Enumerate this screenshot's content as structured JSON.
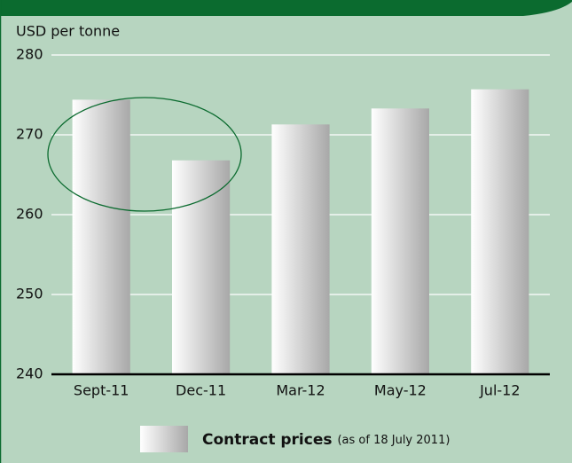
{
  "chart_data": {
    "type": "bar",
    "y_label": "USD per tonne",
    "categories": [
      "Sept-11",
      "Dec-11",
      "Mar-12",
      "May-12",
      "Jul-12"
    ],
    "series": [
      {
        "name": "Contract prices",
        "color": "#a8a8a8",
        "values": [
          274.4,
          266.8,
          271.3,
          273.3,
          275.7
        ]
      }
    ],
    "legend_note": "(as of 18 July 2011)",
    "ylim": [
      240,
      280
    ],
    "yticks": [
      240,
      250,
      260,
      270,
      280
    ],
    "grid": true
  }
}
